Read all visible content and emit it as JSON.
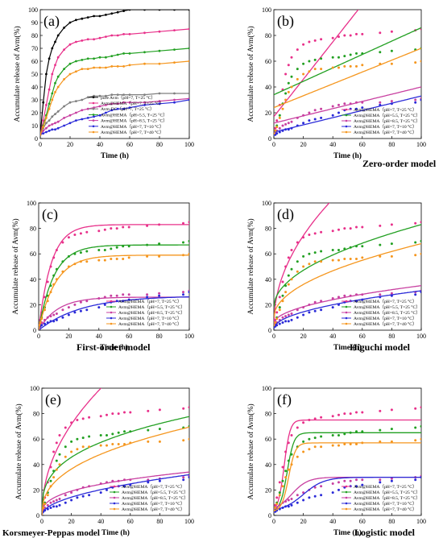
{
  "figure": {
    "x_label": "Time (h)",
    "y_label": "Accumulate release of Avm(%)"
  },
  "chart_data": [
    {
      "type": "line",
      "panel": "(a)",
      "model": "",
      "xlim": [
        0,
        100
      ],
      "ylim": [
        0,
        100
      ],
      "xticks": [
        0,
        20,
        40,
        60,
        80,
        100
      ],
      "yticks": [
        0,
        10,
        20,
        30,
        40,
        50,
        60,
        70,
        80,
        90,
        100
      ],
      "xlabel": "Time (h)",
      "ylabel": "Accumulate release of Avm(%)",
      "grid": false,
      "legend_position": "bottom-right",
      "series": [
        {
          "name": "pure Avm（pH=7, T=25 °C）",
          "color": "#000000",
          "x": [
            0,
            2,
            4,
            6,
            8,
            10,
            12,
            16,
            20,
            24,
            28,
            32,
            36,
            40,
            44,
            48,
            52,
            56,
            60,
            70,
            80,
            90,
            100
          ],
          "y": [
            3,
            28,
            50,
            62,
            70,
            75,
            80,
            86,
            90,
            92,
            93,
            94,
            95,
            95,
            96,
            97,
            98,
            99,
            100,
            100,
            100,
            100,
            100
          ]
        },
        {
          "name": "Avm@HEMA（pH=7, T=25 °C）",
          "color": "#e8308a",
          "x": [
            0,
            2,
            4,
            6,
            8,
            10,
            12,
            16,
            20,
            24,
            28,
            32,
            36,
            40,
            44,
            48,
            52,
            56,
            60,
            70,
            80,
            90,
            100
          ],
          "y": [
            3,
            14,
            26,
            38,
            50,
            57,
            63,
            69,
            73,
            75,
            76,
            77,
            77,
            78,
            79,
            80,
            80,
            81,
            81,
            82,
            83,
            84,
            85
          ]
        },
        {
          "name": "Avm-DC（pH=7, T=25 °C）",
          "color": "#7f7f7f",
          "x": [
            0,
            2,
            4,
            6,
            8,
            10,
            12,
            16,
            20,
            24,
            28,
            32,
            36,
            40,
            44,
            48,
            52,
            56,
            60,
            70,
            80,
            90,
            100
          ],
          "y": [
            3,
            8,
            12,
            14,
            17,
            19,
            21,
            25,
            28,
            29,
            30,
            32,
            33,
            33,
            33,
            34,
            34,
            34,
            34,
            34,
            35,
            35,
            35
          ]
        },
        {
          "name": "Avm@HEMA（pH=5.5, T=25 °C）",
          "color": "#22a022",
          "x": [
            0,
            2,
            4,
            6,
            8,
            10,
            12,
            16,
            20,
            24,
            28,
            32,
            36,
            40,
            44,
            48,
            52,
            56,
            60,
            70,
            80,
            90,
            100
          ],
          "y": [
            3,
            10,
            18,
            27,
            35,
            43,
            48,
            54,
            58,
            60,
            61,
            62,
            62,
            63,
            63,
            64,
            65,
            66,
            66,
            67,
            68,
            69,
            70
          ]
        },
        {
          "name": "Avm@HEMA（pH=8.5, T=25 °C）",
          "color": "#c83fa0",
          "x": [
            0,
            2,
            4,
            6,
            8,
            10,
            12,
            16,
            20,
            24,
            28,
            32,
            36,
            40,
            44,
            48,
            52,
            56,
            60,
            70,
            80,
            90,
            100
          ],
          "y": [
            3,
            6,
            8,
            10,
            11,
            12,
            13,
            16,
            18,
            20,
            22,
            23,
            24,
            25,
            26,
            27,
            27,
            28,
            28,
            28,
            29,
            30,
            31
          ]
        },
        {
          "name": "Avm@HEMA（pH=7, T=10 °C）",
          "color": "#2a2ad8",
          "x": [
            0,
            2,
            4,
            6,
            8,
            10,
            12,
            16,
            20,
            24,
            28,
            32,
            36,
            40,
            44,
            48,
            52,
            56,
            60,
            70,
            80,
            90,
            100
          ],
          "y": [
            3,
            4,
            5,
            6,
            7,
            7,
            8,
            10,
            12,
            14,
            15,
            16,
            17,
            18,
            20,
            22,
            23,
            23,
            24,
            26,
            27,
            28,
            30
          ]
        },
        {
          "name": "Avm@HEMA（pH=7, T=40 °C）",
          "color": "#f5961e",
          "x": [
            0,
            2,
            4,
            6,
            8,
            10,
            12,
            16,
            20,
            24,
            28,
            32,
            36,
            40,
            44,
            48,
            52,
            56,
            60,
            70,
            80,
            90,
            100
          ],
          "y": [
            3,
            9,
            16,
            23,
            30,
            36,
            40,
            46,
            50,
            52,
            54,
            54,
            55,
            55,
            55,
            56,
            56,
            56,
            57,
            58,
            58,
            59,
            60
          ]
        }
      ]
    },
    {
      "type": "scatter",
      "panel": "(b)",
      "model": "Zero-order model",
      "xlim": [
        0,
        100
      ],
      "ylim": [
        0,
        100
      ],
      "xticks": [
        0,
        20,
        40,
        60,
        80,
        100
      ],
      "yticks": [
        0,
        20,
        40,
        60,
        80,
        100
      ],
      "grid": false,
      "legend_position": "bottom-right",
      "series": [
        {
          "name": "Avm@HEMA（pH=7, T=25 °C）",
          "color": "#e8308a"
        },
        {
          "name": "Avm@HEMA（pH=5.5, T=25 °C）",
          "color": "#22a022"
        },
        {
          "name": "Avm@HEMA（pH=8.5, T=25 °C）",
          "color": "#c83fa0"
        },
        {
          "name": "Avm@HEMA（pH=7, T=10 °C）",
          "color": "#2a2ad8"
        },
        {
          "name": "Avm@HEMA（pH=7, T=40 °C）",
          "color": "#f5961e"
        }
      ]
    },
    {
      "type": "scatter",
      "panel": "(c)",
      "model": "First-order model",
      "xlim": [
        0,
        100
      ],
      "ylim": [
        0,
        100
      ],
      "xticks": [
        0,
        20,
        40,
        60,
        80,
        100
      ],
      "yticks": [
        0,
        20,
        40,
        60,
        80,
        100
      ],
      "grid": false,
      "legend_position": "bottom-right",
      "series": [
        {
          "name": "Avm@HEMA（pH=7, T=25 °C）",
          "color": "#e8308a"
        },
        {
          "name": "Avm@HEMA（pH=5.5, T=25 °C）",
          "color": "#22a022"
        },
        {
          "name": "Avm@HEMA（pH=8.5, T=25 °C）",
          "color": "#c83fa0"
        },
        {
          "name": "Avm@HEMA（pH=7, T=10 °C）",
          "color": "#2a2ad8"
        },
        {
          "name": "Avm@HEMA（pH=7, T=40 °C）",
          "color": "#f5961e"
        }
      ]
    },
    {
      "type": "scatter",
      "panel": "(d)",
      "model": "Higuchi model",
      "xlim": [
        0,
        100
      ],
      "ylim": [
        0,
        100
      ],
      "xticks": [
        0,
        20,
        40,
        60,
        80,
        100
      ],
      "yticks": [
        0,
        20,
        40,
        60,
        80,
        100
      ],
      "grid": false,
      "legend_position": "bottom-right",
      "series": [
        {
          "name": "Avm@HEMA（pH=7, T=25 °C）",
          "color": "#e8308a"
        },
        {
          "name": "Avm@HEMA（pH=5.5, T=25 °C）",
          "color": "#22a022"
        },
        {
          "name": "Avm@HEMA（pH=8.5, T=25 °C）",
          "color": "#c83fa0"
        },
        {
          "name": "Avm@HEMA（pH=7, T=10 °C）",
          "color": "#2a2ad8"
        },
        {
          "name": "Avm@HEMA（pH=7, T=40 °C）",
          "color": "#f5961e"
        }
      ]
    },
    {
      "type": "scatter",
      "panel": "(e)",
      "model": "Korsmeyer-Peppas model",
      "xlim": [
        0,
        100
      ],
      "ylim": [
        0,
        100
      ],
      "xticks": [
        0,
        20,
        40,
        60,
        80,
        100
      ],
      "yticks": [
        0,
        20,
        40,
        60,
        80,
        100
      ],
      "grid": false,
      "legend_position": "bottom-right",
      "series": [
        {
          "name": "Avm@HEMA（pH=7, T=25 °C）",
          "color": "#e8308a"
        },
        {
          "name": "Avm@HEMA（pH=5.5, T=25 °C）",
          "color": "#22a022"
        },
        {
          "name": "Avm@HEMA（pH=8.5, T=25 °C）",
          "color": "#c83fa0"
        },
        {
          "name": "Avm@HEMA（pH=7, T=10 °C）",
          "color": "#2a2ad8"
        },
        {
          "name": "Avm@HEMA（pH=7, T=40 °C）",
          "color": "#f5961e"
        }
      ]
    },
    {
      "type": "scatter",
      "panel": "(f)",
      "model": "Logistic model",
      "xlim": [
        0,
        100
      ],
      "ylim": [
        0,
        100
      ],
      "xticks": [
        0,
        20,
        40,
        60,
        80,
        100
      ],
      "yticks": [
        0,
        20,
        40,
        60,
        80,
        100
      ],
      "grid": false,
      "legend_position": "bottom-right",
      "series": [
        {
          "name": "Avm@HEMA（pH=7, T=25 °C）",
          "color": "#e8308a"
        },
        {
          "name": "Avm@HEMA（pH=5.5, T=25 °C）",
          "color": "#22a022"
        },
        {
          "name": "Avm@HEMA（pH=8.5, T=25 °C）",
          "color": "#c83fa0"
        },
        {
          "name": "Avm@HEMA（pH=7, T=10 °C）",
          "color": "#2a2ad8"
        },
        {
          "name": "Avm@HEMA（pH=7, T=40 °C）",
          "color": "#f5961e"
        }
      ]
    }
  ],
  "experimental_points": {
    "x": [
      0,
      1,
      2,
      4,
      6,
      8,
      10,
      12,
      16,
      20,
      24,
      28,
      32,
      40,
      44,
      48,
      52,
      56,
      60,
      72,
      80,
      96,
      100
    ],
    "series": [
      {
        "name": "Avm@HEMA（pH=7, T=25 °C）",
        "y": [
          4,
          8,
          14,
          26,
          38,
          50,
          57,
          63,
          69,
          73,
          75,
          76,
          77,
          78,
          79,
          80,
          80,
          81,
          81,
          82,
          83,
          84,
          85
        ]
      },
      {
        "name": "Avm@HEMA（pH=5.5, T=25 °C）",
        "y": [
          4,
          6,
          10,
          18,
          27,
          35,
          43,
          48,
          54,
          58,
          60,
          61,
          62,
          63,
          63,
          64,
          65,
          66,
          66,
          67,
          68,
          69,
          70
        ]
      },
      {
        "name": "Avm@HEMA（pH=8.5, T=25 °C）",
        "y": [
          4,
          5,
          6,
          8,
          10,
          11,
          12,
          13,
          16,
          18,
          20,
          22,
          23,
          25,
          26,
          27,
          27,
          28,
          28,
          28,
          29,
          30,
          31
        ]
      },
      {
        "name": "Avm@HEMA（pH=7, T=10 °C）",
        "y": [
          3,
          3,
          4,
          5,
          6,
          7,
          7,
          8,
          10,
          12,
          14,
          15,
          16,
          18,
          20,
          22,
          23,
          23,
          24,
          26,
          27,
          28,
          30
        ]
      },
      {
        "name": "Avm@HEMA（pH=7, T=40 °C）",
        "y": [
          4,
          6,
          9,
          16,
          23,
          30,
          36,
          40,
          46,
          50,
          52,
          54,
          54,
          55,
          55,
          56,
          56,
          56,
          57,
          58,
          58,
          59,
          60
        ]
      }
    ]
  }
}
